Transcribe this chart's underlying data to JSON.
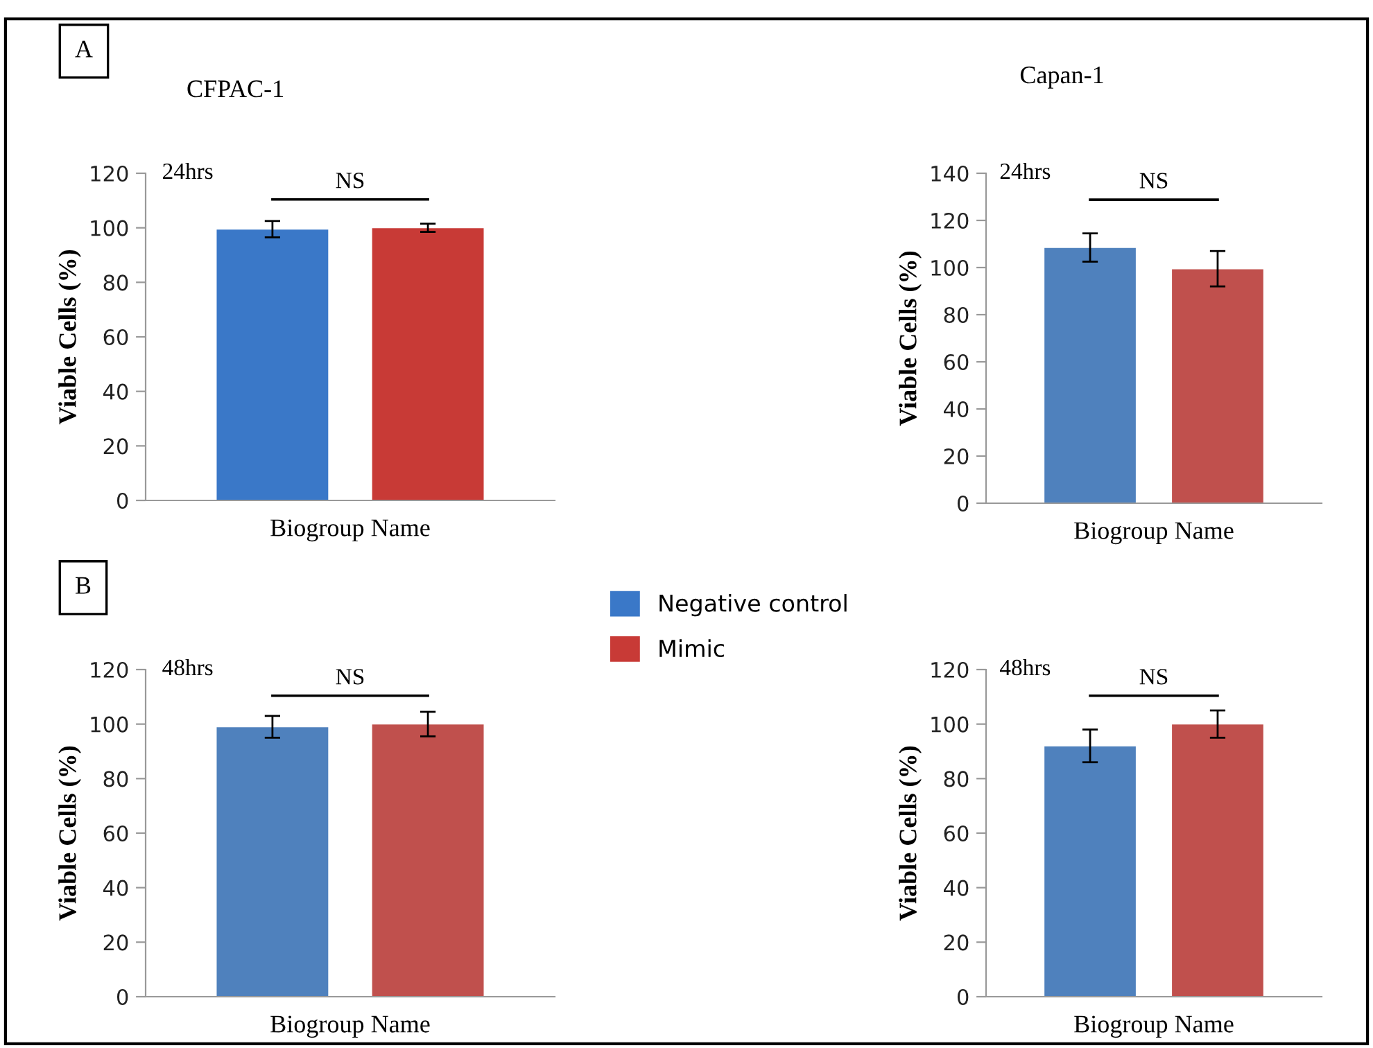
{
  "chart_data": [
    {
      "type": "bar",
      "title": "CFPAC-1",
      "xlabel": "Biogroup Name",
      "ylabel": "Viable Cells (%)",
      "categories": [
        null
      ],
      "ylim": [
        0,
        120
      ],
      "yticks": [
        0,
        20,
        40,
        60,
        80,
        100,
        120
      ],
      "legend": "bottom right",
      "annotations": [
        "24hrs",
        "NS",
        "A"
      ],
      "series": [
        {
          "name": "Negative control",
          "color": "#3a78c8",
          "values": [
            99.5
          ],
          "errors": [
            3
          ]
        },
        {
          "name": "Mimic",
          "color": "#c83a36",
          "values": [
            100
          ],
          "errors": [
            1.5
          ]
        }
      ]
    },
    {
      "type": "bar",
      "title": "Capan-1",
      "xlabel": "Biogroup Name",
      "ylabel": "Viable Cells (%)",
      "categories": [
        null
      ],
      "ylim": [
        0,
        140
      ],
      "yticks": [
        0,
        20,
        40,
        60,
        80,
        100,
        120,
        140
      ],
      "annotations": [
        "24hrs",
        "NS"
      ],
      "series": [
        {
          "color": "#4f81bd",
          "values": [
            108.5
          ],
          "errors": [
            6
          ]
        },
        {
          "color": "#c0504d",
          "values": [
            99.5
          ],
          "errors": [
            7.5
          ]
        }
      ]
    },
    {
      "type": "bar",
      "xlabel": "Biogroup Name",
      "ylabel": "Viable Cells (%)",
      "categories": [
        null
      ],
      "ylim": [
        0,
        120
      ],
      "yticks": [
        0,
        20,
        40,
        60,
        80,
        100,
        120
      ],
      "annotations": [
        "48hrs",
        "NS",
        "B"
      ],
      "series": [
        {
          "color": "#4f81bd",
          "values": [
            99
          ],
          "errors": [
            4
          ]
        },
        {
          "color": "#c0504d",
          "values": [
            100
          ],
          "errors": [
            4.5
          ]
        }
      ]
    },
    {
      "type": "bar",
      "xlabel": "Biogroup Name",
      "ylabel": "Viable Cells (%)",
      "categories": [
        null
      ],
      "ylim": [
        0,
        120
      ],
      "yticks": [
        0,
        20,
        40,
        60,
        80,
        100,
        120
      ],
      "annotations": [
        "48hrs",
        "NS"
      ],
      "series": [
        {
          "color": "#4f81bd",
          "values": [
            92
          ],
          "errors": [
            6
          ]
        },
        {
          "color": "#c0504d",
          "values": [
            100
          ],
          "errors": [
            5
          ]
        }
      ]
    }
  ]
}
